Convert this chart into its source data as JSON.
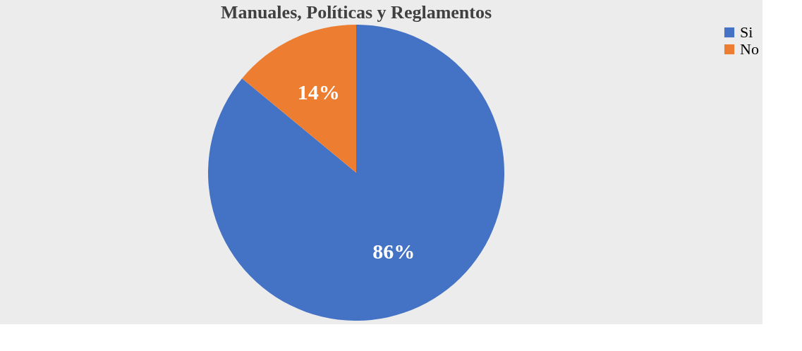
{
  "chart_data": {
    "type": "pie",
    "title": "Manuales, Políticas y Reglamentos",
    "categories": [
      "Si",
      "No"
    ],
    "values": [
      86,
      14
    ],
    "colors": [
      "#4472c4",
      "#ed7d31"
    ],
    "value_labels": [
      "86%",
      "14%"
    ],
    "legend": "right"
  }
}
